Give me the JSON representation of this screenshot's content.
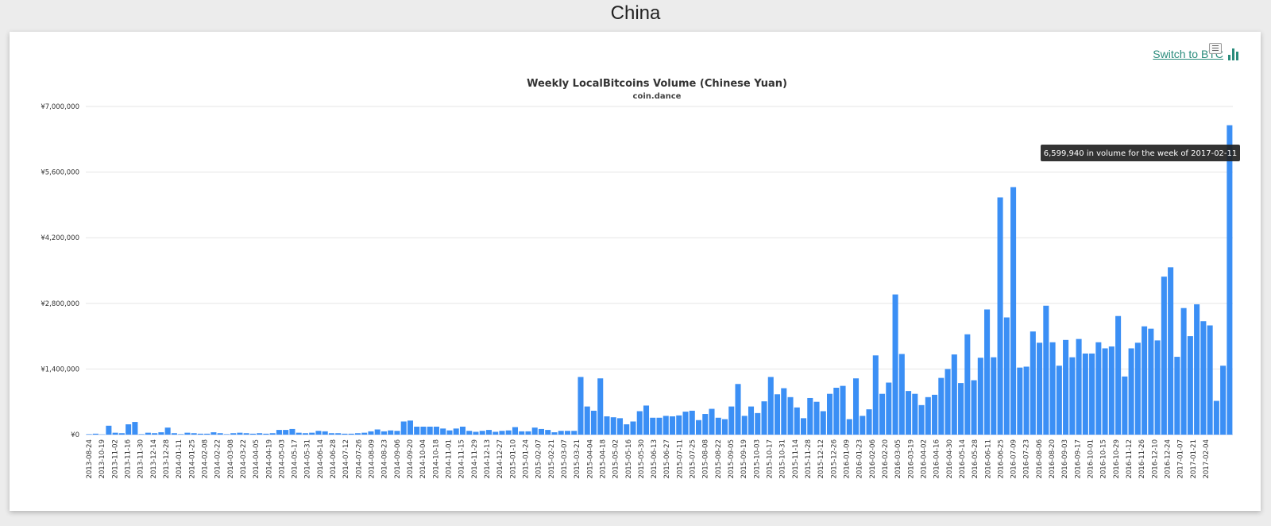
{
  "page": {
    "title": "China"
  },
  "switch_link": {
    "label": "Switch to BTC",
    "icon": "bar-chart-icon"
  },
  "menu": {
    "icon": "menu-icon"
  },
  "tooltip": {
    "text": "6,599,940 in volume for the week of 2017-02-11"
  },
  "colors": {
    "bar": "#3b8ff5",
    "accent": "#2a8c7c"
  },
  "chart_data": {
    "type": "bar",
    "title": "Weekly LocalBitcoins Volume (Chinese Yuan)",
    "subtitle": "coin.dance",
    "ylim": [
      0,
      7000000
    ],
    "y_ticks": [
      {
        "value": 0,
        "label": "¥0"
      },
      {
        "value": 1400000,
        "label": "¥1,400,000"
      },
      {
        "value": 2800000,
        "label": "¥2,800,000"
      },
      {
        "value": 4200000,
        "label": "¥4,200,000"
      },
      {
        "value": 5600000,
        "label": "¥5,600,000"
      },
      {
        "value": 7000000,
        "label": "¥7,000,000"
      }
    ],
    "x_labels": [
      "2013-08-24",
      "2013-10-19",
      "2013-11-02",
      "2013-11-16",
      "2013-11-30",
      "2013-12-14",
      "2013-12-28",
      "2014-01-11",
      "2014-01-25",
      "2014-02-08",
      "2014-02-22",
      "2014-03-08",
      "2014-03-22",
      "2014-04-05",
      "2014-04-19",
      "2014-05-03",
      "2014-05-17",
      "2014-05-31",
      "2014-06-14",
      "2014-06-28",
      "2014-07-12",
      "2014-07-26",
      "2014-08-09",
      "2014-08-23",
      "2014-09-06",
      "2014-09-20",
      "2014-10-04",
      "2014-10-18",
      "2014-11-01",
      "2014-11-15",
      "2014-11-29",
      "2014-12-13",
      "2014-12-27",
      "2015-01-10",
      "2015-01-24",
      "2015-02-07",
      "2015-02-21",
      "2015-03-07",
      "2015-03-21",
      "2015-04-04",
      "2015-04-18",
      "2015-05-02",
      "2015-05-16",
      "2015-05-30",
      "2015-06-13",
      "2015-06-27",
      "2015-07-11",
      "2015-07-25",
      "2015-08-08",
      "2015-08-22",
      "2015-09-05",
      "2015-09-19",
      "2015-10-03",
      "2015-10-17",
      "2015-10-31",
      "2015-11-14",
      "2015-11-28",
      "2015-12-12",
      "2015-12-26",
      "2016-01-09",
      "2016-01-23",
      "2016-02-06",
      "2016-02-20",
      "2016-03-05",
      "2016-03-19",
      "2016-04-02",
      "2016-04-16",
      "2016-04-30",
      "2016-05-14",
      "2016-05-28",
      "2016-06-11",
      "2016-06-25",
      "2016-07-09",
      "2016-07-23",
      "2016-08-06",
      "2016-08-20",
      "2016-09-03",
      "2016-09-17",
      "2016-10-01",
      "2016-10-15",
      "2016-10-29",
      "2016-11-12",
      "2016-11-26",
      "2016-12-10",
      "2016-12-24",
      "2017-01-07",
      "2017-01-21",
      "2017-02-04"
    ],
    "values": [
      10000,
      20000,
      5000,
      190000,
      40000,
      30000,
      220000,
      270000,
      10000,
      40000,
      30000,
      50000,
      150000,
      30000,
      10000,
      40000,
      30000,
      20000,
      20000,
      50000,
      30000,
      10000,
      30000,
      40000,
      30000,
      20000,
      30000,
      20000,
      30000,
      100000,
      100000,
      120000,
      40000,
      30000,
      40000,
      80000,
      70000,
      30000,
      30000,
      20000,
      20000,
      30000,
      40000,
      70000,
      110000,
      70000,
      90000,
      80000,
      280000,
      300000,
      170000,
      170000,
      170000,
      170000,
      130000,
      90000,
      130000,
      170000,
      80000,
      60000,
      80000,
      100000,
      60000,
      80000,
      90000,
      160000,
      70000,
      70000,
      150000,
      120000,
      100000,
      50000,
      80000,
      80000,
      80000,
      1230000,
      600000,
      510000,
      1200000,
      390000,
      370000,
      350000,
      220000,
      280000,
      500000,
      620000,
      360000,
      360000,
      400000,
      390000,
      410000,
      490000,
      510000,
      310000,
      440000,
      550000,
      360000,
      330000,
      600000,
      1080000,
      400000,
      600000,
      460000,
      710000,
      1230000,
      860000,
      990000,
      800000,
      580000,
      350000,
      780000,
      700000,
      500000,
      870000,
      1000000,
      1040000,
      330000,
      1200000,
      400000,
      540000,
      1690000,
      870000,
      1110000,
      2990000,
      1720000,
      930000,
      870000,
      630000,
      800000,
      850000,
      1210000,
      1400000,
      1710000,
      1100000,
      2140000,
      1160000,
      1640000,
      2670000,
      1650000,
      5060000,
      2500000,
      5280000,
      1430000,
      1450000,
      2200000,
      1960000,
      2750000,
      1970000,
      1470000,
      2020000,
      1650000,
      2040000,
      1730000,
      1730000,
      1970000,
      1840000,
      1880000,
      2530000,
      1240000,
      1840000,
      1960000,
      2310000,
      2260000,
      2010000,
      3370000,
      3570000,
      1660000,
      2700000,
      2100000,
      2780000,
      2420000,
      2330000,
      720000,
      1470000,
      6599940
    ]
  }
}
